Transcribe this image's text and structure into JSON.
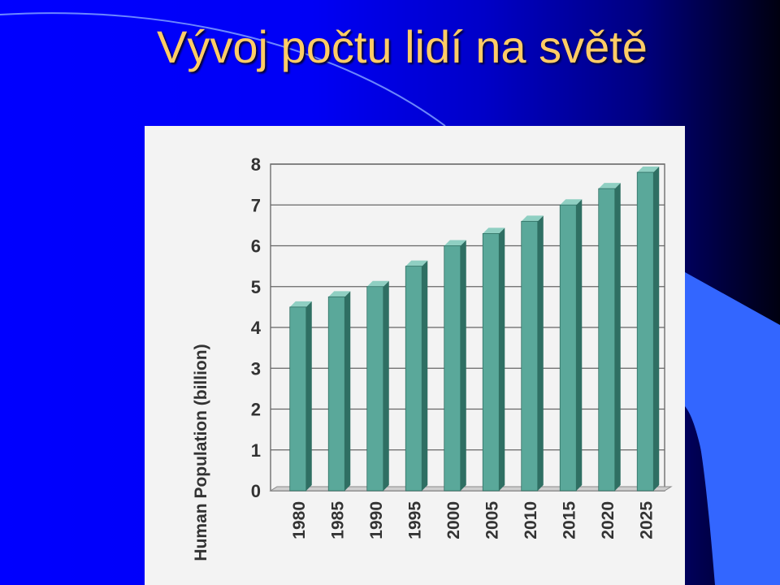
{
  "slide": {
    "title": "Vývoj počtu lidí na světě"
  },
  "chart_data": {
    "type": "bar",
    "title": "",
    "xlabel": "",
    "ylabel": "Human Population (billion)",
    "categories": [
      "1980",
      "1985",
      "1990",
      "1995",
      "2000",
      "2005",
      "2010",
      "2015",
      "2020",
      "2025"
    ],
    "values": [
      4.5,
      4.75,
      5.0,
      5.5,
      6.0,
      6.3,
      6.6,
      7.0,
      7.4,
      7.8
    ],
    "ylim": [
      0,
      8
    ],
    "yticks": [
      "0",
      "1",
      "2",
      "3",
      "4",
      "5",
      "6",
      "7",
      "8"
    ],
    "grid": true,
    "colors": {
      "bar_front": "#5aa89a",
      "bar_side": "#2f6f63",
      "bar_top": "#8fcfc2"
    }
  },
  "colors": {
    "title": "#ffcc66",
    "chart_background": "#f3f3f3",
    "accent_shape": "#3366ff"
  }
}
